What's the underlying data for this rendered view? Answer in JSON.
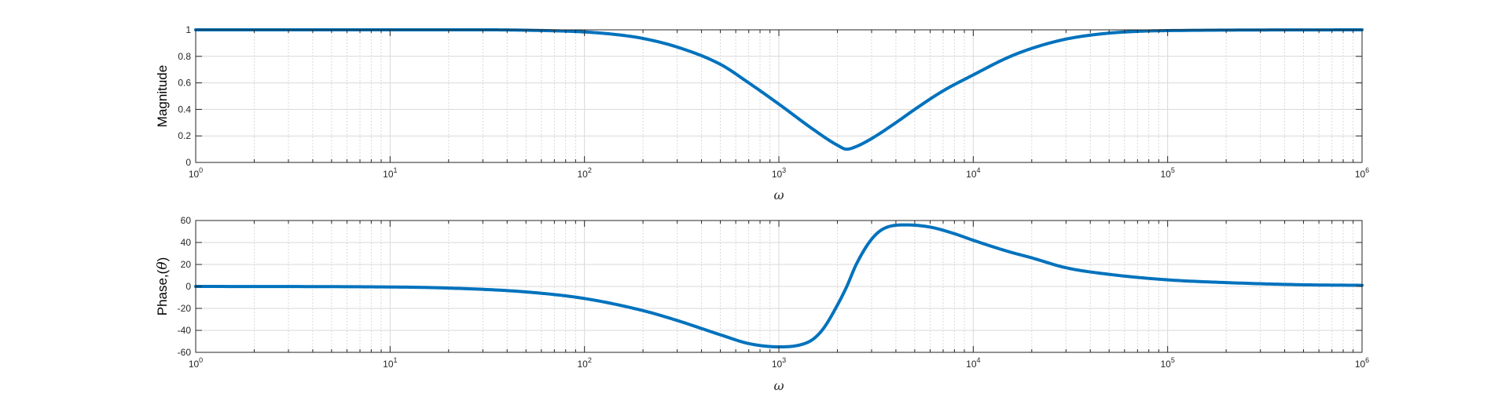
{
  "colors": {
    "line": "#0072BD",
    "axes": "#262626",
    "grid": "#d9d9d9",
    "background": "#ffffff"
  },
  "chart_data": [
    {
      "type": "line",
      "xscale": "log",
      "xlim": [
        1,
        1000000
      ],
      "ylim": [
        0,
        1
      ],
      "xlabel": "ω",
      "ylabel": "Magnitude",
      "xticks": [
        "10^0",
        "10^1",
        "10^2",
        "10^3",
        "10^4",
        "10^5",
        "10^6"
      ],
      "yticks": [
        "0",
        "0.2",
        "0.4",
        "0.6",
        "0.8",
        "1"
      ],
      "grid": true,
      "series": [
        {
          "x": [
            1,
            10,
            30,
            50,
            100,
            150,
            200,
            300,
            500,
            700,
            1000,
            1500,
            2000,
            2236,
            2500,
            3000,
            4000,
            5000,
            7000,
            10000,
            15000,
            20000,
            30000,
            50000,
            100000,
            1000000
          ],
          "y": [
            1.0,
            1.0,
            1.0,
            0.997,
            0.984,
            0.962,
            0.935,
            0.87,
            0.74,
            0.6,
            0.44,
            0.25,
            0.13,
            0.1,
            0.12,
            0.18,
            0.3,
            0.4,
            0.54,
            0.66,
            0.79,
            0.86,
            0.93,
            0.975,
            0.994,
            1.0
          ]
        }
      ]
    },
    {
      "type": "line",
      "xscale": "log",
      "xlim": [
        1,
        1000000
      ],
      "ylim": [
        -60,
        60
      ],
      "xlabel": "ω",
      "ylabel_main": "Phase,(",
      "ylabel_symbol": "θ",
      "ylabel_close": ")",
      "xticks": [
        "10^0",
        "10^1",
        "10^2",
        "10^3",
        "10^4",
        "10^5",
        "10^6"
      ],
      "yticks": [
        "-60",
        "-40",
        "-20",
        "0",
        "20",
        "40",
        "60"
      ],
      "grid": true,
      "series": [
        {
          "x": [
            1,
            10,
            20,
            50,
            100,
            200,
            300,
            500,
            700,
            1000,
            1300,
            1500,
            1700,
            2000,
            2236,
            2500,
            3000,
            3500,
            4500,
            6000,
            8000,
            10000,
            15000,
            20000,
            30000,
            50000,
            100000,
            200000,
            500000,
            1000000
          ],
          "y": [
            0,
            -0.5,
            -1.5,
            -5,
            -11,
            -22,
            -31,
            -44,
            -52,
            -55,
            -53,
            -48,
            -38,
            -17,
            0,
            20,
            43,
            53,
            56,
            54,
            48,
            42,
            32,
            26,
            17,
            11,
            6,
            3.5,
            1.5,
            1
          ]
        }
      ]
    }
  ]
}
